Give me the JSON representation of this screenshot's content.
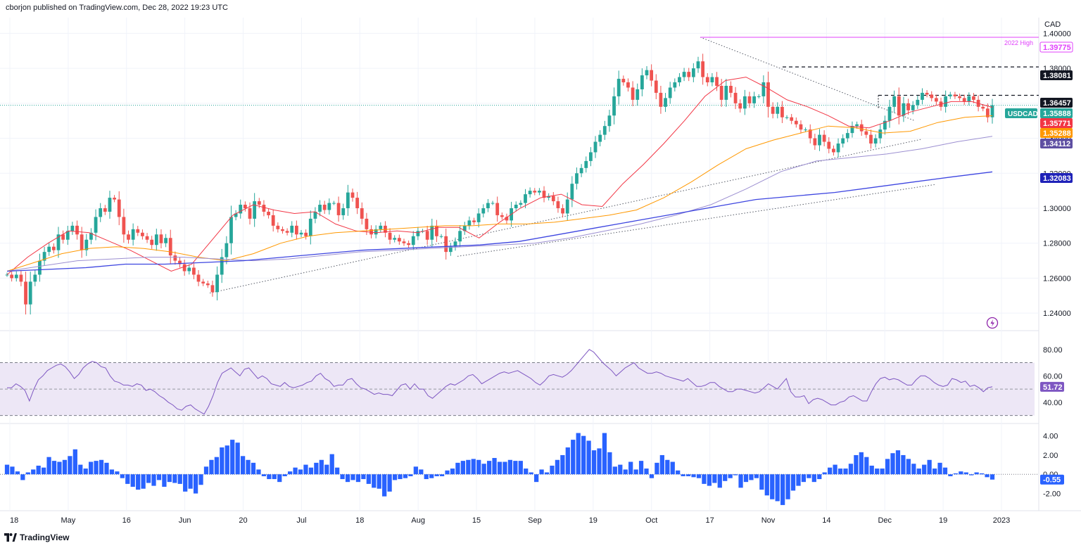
{
  "header": {
    "text": "cborjon published on TradingView.com, Dec 28, 2022 19:23 UTC"
  },
  "footer": {
    "brand": "TradingView",
    "logo_icon": "tradingview-logo-icon"
  },
  "colors": {
    "bull": "#26a69a",
    "bear": "#ef5350",
    "ema20": "#f23645",
    "ema50": "#ff9800",
    "sma100": "#9c8fd1",
    "sma200": "#3d45e0",
    "rsi": "#7e57c2",
    "rsi_band": "#ede7f6",
    "hist": "#2962ff",
    "high2022": "#e040fb",
    "usdcad_tag": "#26a69a",
    "ema20_tag": "#f23645",
    "ema50_tag": "#ff9800",
    "sma100_tag": "#5e4fa2",
    "sma200_tag": "#1f22b8"
  },
  "chart_data": [
    {
      "type": "line",
      "title": "USDCAD",
      "ylabel": "CAD",
      "ylim": [
        1.23,
        1.405
      ],
      "price_ticks": [
        "1.40000",
        "1.38000",
        "1.36000",
        "1.34000",
        "1.32000",
        "1.30000",
        "1.28000",
        "1.26000",
        "1.24000"
      ],
      "x_ticks": [
        "18",
        "May",
        "16",
        "Jun",
        "20",
        "Jul",
        "18",
        "Aug",
        "15",
        "Sep",
        "19",
        "Oct",
        "17",
        "Nov",
        "14",
        "Dec",
        "19",
        "2023"
      ],
      "price_tags": [
        {
          "label": "1.39775",
          "value": 1.39775,
          "role": "2022-high"
        },
        {
          "label": "1.38081",
          "value": 1.38081,
          "role": "resistance"
        },
        {
          "label": "1.36457",
          "value": 1.36457,
          "role": "resistance"
        },
        {
          "label": "USDCAD",
          "value": 1.35888,
          "role": "last-price",
          "text": "1.35888"
        },
        {
          "label": "1.35771",
          "value": 1.35771,
          "role": "ema20"
        },
        {
          "label": "1.35288",
          "value": 1.35288,
          "role": "ema50"
        },
        {
          "label": "1.34112",
          "value": 1.34112,
          "role": "sma100"
        },
        {
          "label": "1.32083",
          "value": 1.32083,
          "role": "sma200"
        }
      ],
      "annotations": [
        "2022 High"
      ],
      "series": [
        {
          "values": [
            1.262,
            1.26,
            1.262,
            1.258,
            1.245,
            1.258,
            1.262,
            1.27,
            1.275,
            1.278,
            1.276,
            1.285,
            1.282,
            1.287,
            1.29,
            1.285,
            1.276,
            1.282,
            1.286,
            1.295,
            1.3,
            1.298,
            1.306,
            1.305,
            1.295,
            1.285,
            1.282,
            1.288,
            1.286,
            1.284,
            1.282,
            1.279,
            1.285,
            1.28,
            1.283,
            1.273,
            1.27,
            1.268,
            1.264,
            1.266,
            1.262,
            1.258,
            1.257,
            1.256,
            1.252,
            1.262,
            1.272,
            1.28,
            1.295,
            1.297,
            1.302,
            1.3,
            1.294,
            1.304,
            1.302,
            1.298,
            1.296,
            1.29,
            1.288,
            1.287,
            1.286,
            1.29,
            1.285,
            1.286,
            1.284,
            1.294,
            1.298,
            1.302,
            1.299,
            1.303,
            1.303,
            1.296,
            1.3,
            1.309,
            1.306,
            1.3,
            1.294,
            1.288,
            1.285,
            1.288,
            1.29,
            1.286,
            1.282,
            1.283,
            1.281,
            1.28,
            1.279,
            1.284,
            1.287,
            1.287,
            1.282,
            1.29,
            1.284,
            1.284,
            1.275,
            1.278,
            1.281,
            1.287,
            1.29,
            1.293,
            1.292,
            1.297,
            1.3,
            1.303,
            1.303,
            1.296,
            1.295,
            1.293,
            1.3,
            1.302,
            1.303,
            1.308,
            1.31,
            1.309,
            1.31,
            1.306,
            1.307,
            1.304,
            1.3,
            1.297,
            1.305,
            1.314,
            1.32,
            1.323,
            1.327,
            1.332,
            1.338,
            1.342,
            1.347,
            1.353,
            1.364,
            1.374,
            1.372,
            1.369,
            1.362,
            1.368,
            1.376,
            1.379,
            1.373,
            1.366,
            1.358,
            1.363,
            1.369,
            1.372,
            1.375,
            1.378,
            1.375,
            1.38,
            1.384,
            1.375,
            1.372,
            1.375,
            1.37,
            1.362,
            1.37,
            1.366,
            1.36,
            1.357,
            1.364,
            1.36,
            1.364,
            1.364,
            1.372,
            1.358,
            1.354,
            1.358,
            1.352,
            1.352,
            1.35,
            1.348,
            1.345,
            1.345,
            1.34,
            1.336,
            1.342,
            1.338,
            1.334,
            1.332,
            1.337,
            1.34,
            1.343,
            1.347,
            1.348,
            1.344,
            1.342,
            1.337,
            1.34,
            1.345,
            1.35,
            1.358,
            1.364,
            1.353,
            1.36,
            1.356,
            1.359,
            1.362,
            1.366,
            1.365,
            1.363,
            1.361,
            1.358,
            1.364,
            1.365,
            1.364,
            1.363,
            1.361,
            1.364,
            1.362,
            1.358,
            1.357,
            1.352,
            1.3589
          ]
        },
        {
          "name": "EMA 20",
          "values": [
            1.262,
            1.272,
            1.28,
            1.287,
            1.286,
            1.281,
            1.276,
            1.27,
            1.264,
            1.268,
            1.282,
            1.296,
            1.302,
            1.299,
            1.297,
            1.298,
            1.291,
            1.287,
            1.286,
            1.287,
            1.286,
            1.289,
            1.289,
            1.283,
            1.292,
            1.3,
            1.306,
            1.308,
            1.302,
            1.301,
            1.314,
            1.325,
            1.337,
            1.35,
            1.364,
            1.373,
            1.375,
            1.369,
            1.362,
            1.358,
            1.353,
            1.347,
            1.346,
            1.35,
            1.355,
            1.358,
            1.361,
            1.361,
            1.3577
          ]
        },
        {
          "name": "EMA 50",
          "values": [
            1.264,
            1.269,
            1.274,
            1.277,
            1.278,
            1.277,
            1.275,
            1.272,
            1.27,
            1.274,
            1.28,
            1.284,
            1.286,
            1.287,
            1.288,
            1.289,
            1.29,
            1.29,
            1.291,
            1.291,
            1.292,
            1.294,
            1.296,
            1.299,
            1.306,
            1.315,
            1.325,
            1.334,
            1.339,
            1.343,
            1.347,
            1.346,
            1.343,
            1.344,
            1.349,
            1.352,
            1.3529
          ]
        },
        {
          "name": "SMA 100",
          "values": [
            1.264,
            1.267,
            1.27,
            1.271,
            1.272,
            1.272,
            1.271,
            1.27,
            1.271,
            1.273,
            1.275,
            1.276,
            1.277,
            1.278,
            1.279,
            1.28,
            1.283,
            1.287,
            1.291,
            1.296,
            1.302,
            1.311,
            1.321,
            1.327,
            1.329,
            1.331,
            1.334,
            1.338,
            1.3411
          ]
        },
        {
          "name": "SMA 200",
          "values": [
            1.264,
            1.265,
            1.266,
            1.268,
            1.268,
            1.269,
            1.27,
            1.272,
            1.274,
            1.276,
            1.277,
            1.278,
            1.279,
            1.281,
            1.285,
            1.289,
            1.293,
            1.297,
            1.301,
            1.305,
            1.307,
            1.309,
            1.312,
            1.315,
            1.318,
            1.3208
          ]
        }
      ]
    },
    {
      "type": "line",
      "title": "RSI",
      "ylim": [
        25,
        90
      ],
      "y_ticks": [
        "80.00",
        "60.00",
        "40.00"
      ],
      "bands": [
        30,
        70
      ],
      "last_label": "51.72",
      "series": [
        {
          "values": [
            51,
            51,
            54,
            52,
            49,
            41,
            50,
            57,
            60,
            64,
            66,
            68,
            69,
            67,
            63,
            58,
            61,
            66,
            69,
            71,
            70,
            67,
            66,
            60,
            56,
            55,
            53,
            53,
            52,
            54,
            53,
            49,
            50,
            48,
            45,
            43,
            40,
            38,
            35,
            34,
            37,
            38,
            35,
            33,
            31,
            37,
            45,
            55,
            62,
            64,
            66,
            63,
            60,
            65,
            66,
            62,
            58,
            60,
            58,
            54,
            53,
            52,
            55,
            52,
            51,
            52,
            53,
            55,
            56,
            60,
            62,
            58,
            56,
            52,
            53,
            53,
            57,
            58,
            54,
            51,
            50,
            48,
            46,
            47,
            46,
            46,
            45,
            49,
            53,
            54,
            50,
            54,
            50,
            50,
            45,
            43,
            46,
            49,
            52,
            54,
            53,
            55,
            57,
            60,
            61,
            58,
            54,
            56,
            58,
            60,
            62,
            63,
            62,
            63,
            64,
            62,
            60,
            58,
            55,
            53,
            56,
            60,
            61,
            60,
            59,
            61,
            64,
            68,
            72,
            76,
            80,
            78,
            74,
            70,
            67,
            64,
            60,
            63,
            66,
            68,
            70,
            66,
            64,
            62,
            62,
            63,
            62,
            60,
            59,
            58,
            57,
            56,
            58,
            55,
            52,
            52,
            53,
            55,
            55,
            52,
            50,
            48,
            48,
            50,
            50,
            49,
            48,
            47,
            48,
            51,
            54,
            52,
            50,
            54,
            58,
            48,
            44,
            44,
            45,
            39,
            42,
            43,
            42,
            40,
            38,
            38,
            40,
            41,
            44,
            45,
            43,
            41,
            41,
            48,
            54,
            58,
            59,
            57,
            58,
            57,
            55,
            53,
            53,
            57,
            60,
            60,
            58,
            55,
            53,
            52,
            53,
            58,
            57,
            55,
            56,
            52,
            53,
            51,
            48,
            51,
            51.72
          ]
        }
      ]
    },
    {
      "type": "bar",
      "title": "Momentum",
      "ylim": [
        -3.5,
        5
      ],
      "y_ticks": [
        "4.00",
        "2.00",
        "0.00",
        "-2.00"
      ],
      "last_label": "-0.55",
      "series": [
        {
          "values": [
            1.0,
            0.8,
            0.3,
            -0.6,
            0.2,
            0.5,
            0.9,
            0.7,
            1.8,
            1.4,
            1.3,
            1.5,
            1.9,
            2.6,
            1.0,
            0.6,
            1.3,
            1.4,
            1.5,
            1.2,
            0.5,
            0.3,
            -0.4,
            -1.0,
            -1.3,
            -1.6,
            -1.5,
            -0.9,
            -1.2,
            -0.6,
            -1.3,
            -0.8,
            -0.9,
            -1.0,
            -1.8,
            -1.5,
            -2.0,
            -1.1,
            0.8,
            1.5,
            1.8,
            2.8,
            3.0,
            3.6,
            3.3,
            1.9,
            1.5,
            1.2,
            0.5,
            -0.2,
            -0.5,
            -0.5,
            -0.8,
            -0.2,
            0.3,
            0.7,
            0.5,
            1.0,
            0.7,
            1.2,
            1.5,
            1.0,
            2.1,
            0.7,
            -0.5,
            -0.8,
            -0.6,
            -0.8,
            -0.5,
            -1.0,
            -1.4,
            -1.5,
            -2.3,
            -1.8,
            -0.6,
            -0.5,
            -0.4,
            -0.2,
            0.8,
            0.5,
            -0.5,
            -0.4,
            -0.2,
            -0.2,
            0.4,
            0.6,
            1.2,
            1.4,
            1.5,
            1.6,
            1.5,
            1.1,
            1.4,
            1.7,
            1.3,
            1.3,
            1.5,
            1.4,
            1.4,
            0.6,
            0.2,
            -0.8,
            0.5,
            0.2,
            0.9,
            1.5,
            2.0,
            2.8,
            3.6,
            4.3,
            4.0,
            3.5,
            2.5,
            2.7,
            4.3,
            2.3,
            0.8,
            1.0,
            0.5,
            1.3,
            0.5,
            1.4,
            0.6,
            -0.4,
            1.2,
            2.0,
            1.5,
            1.3,
            0.4,
            -0.2,
            -0.2,
            -0.3,
            -0.4,
            -1.0,
            -1.2,
            -0.9,
            -1.4,
            -0.7,
            -0.4,
            -0.1,
            -1.4,
            -0.8,
            -0.6,
            -0.4,
            -1.6,
            -2.2,
            -2.6,
            -2.8,
            -3.2,
            -2.6,
            -1.7,
            -1.2,
            -0.8,
            -0.4,
            -0.8,
            -0.5,
            0.2,
            0.7,
            1.0,
            0.6,
            0.6,
            1.1,
            2.0,
            2.3,
            1.8,
            0.9,
            0.6,
            0.6,
            1.6,
            2.2,
            2.5,
            2.0,
            1.6,
            1.1,
            0.6,
            1.0,
            1.5,
            0.6,
            1.2,
            0.7,
            -0.2,
            0.1,
            0.3,
            0.2,
            -0.1,
            0.2,
            0.1,
            -0.3,
            -0.55
          ]
        }
      ]
    }
  ]
}
